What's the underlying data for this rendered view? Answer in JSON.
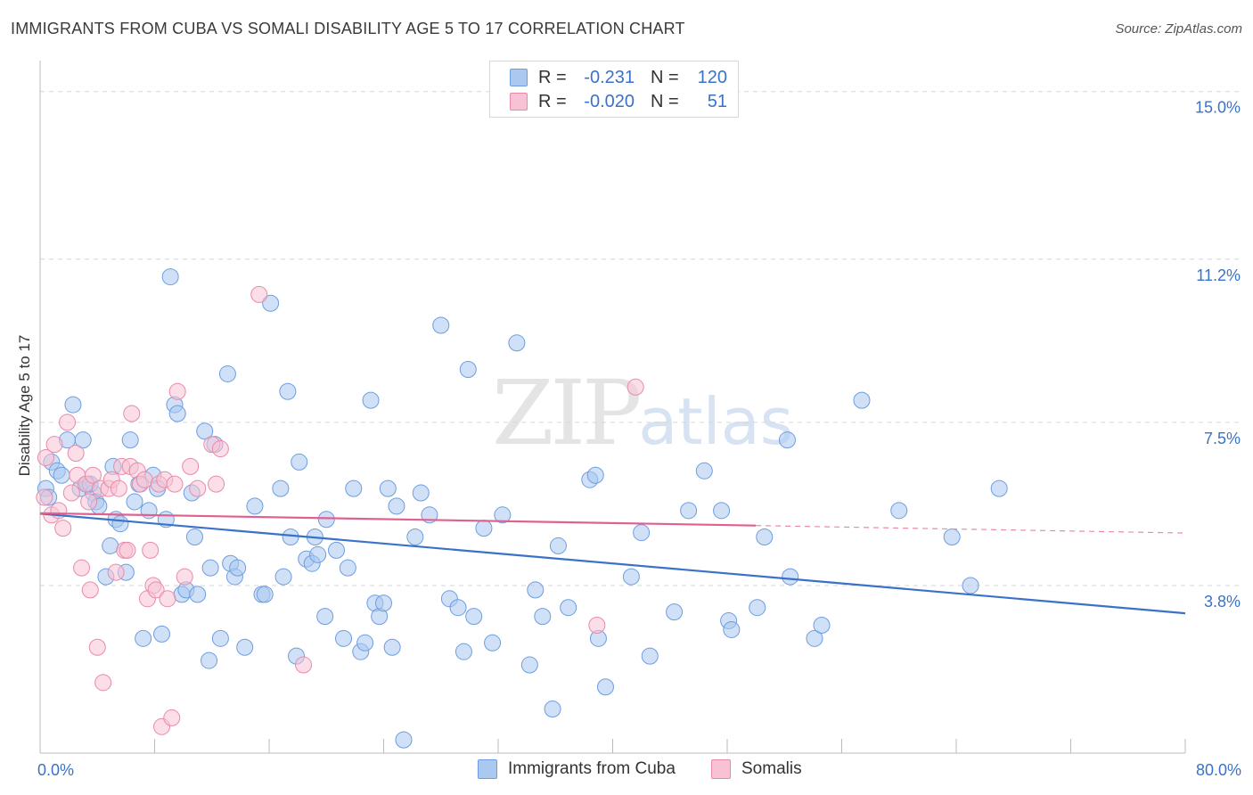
{
  "title": "IMMIGRANTS FROM CUBA VS SOMALI DISABILITY AGE 5 TO 17 CORRELATION CHART",
  "source": "Source: ZipAtlas.com",
  "watermark": {
    "zip": "ZIP",
    "atlas": "atlas"
  },
  "legend": {
    "rows": [
      {
        "r_label": "R =",
        "r_value": "-0.231",
        "n_label": "N =",
        "n_value": "120",
        "color": "#aac8f0",
        "border": "#6d9de0"
      },
      {
        "r_label": "R =",
        "r_value": "-0.020",
        "n_label": "N =",
        "n_value": "51",
        "color": "#f8c2d4",
        "border": "#e88aaa"
      }
    ]
  },
  "bottom_legend": {
    "items": [
      {
        "label": "Immigrants from Cuba",
        "color": "#aac8f0",
        "border": "#6d9de0"
      },
      {
        "label": "Somalis",
        "color": "#f8c2d4",
        "border": "#e88aaa"
      }
    ]
  },
  "chart_data": {
    "type": "scatter",
    "title": "IMMIGRANTS FROM CUBA VS SOMALI DISABILITY AGE 5 TO 17 CORRELATION CHART",
    "xlabel": "",
    "ylabel": "Disability Age 5 to 17",
    "xlim": [
      0,
      80
    ],
    "ylim": [
      0,
      15.5
    ],
    "x_tick_labels": [
      {
        "value": 0,
        "label": "0.0%"
      },
      {
        "value": 80,
        "label": "80.0%"
      }
    ],
    "y_ticks": [
      {
        "value": 3.8,
        "label": "3.8%"
      },
      {
        "value": 7.5,
        "label": "7.5%"
      },
      {
        "value": 11.2,
        "label": "11.2%"
      },
      {
        "value": 15.0,
        "label": "15.0%"
      }
    ],
    "grid": "horizontal dashed",
    "series": [
      {
        "name": "Immigrants from Cuba",
        "color": "#6d9de0",
        "fill": "#aac8f0",
        "points": [
          [
            0.4,
            6.0
          ],
          [
            0.6,
            5.8
          ],
          [
            0.8,
            6.6
          ],
          [
            1.2,
            6.4
          ],
          [
            1.5,
            6.3
          ],
          [
            1.9,
            7.1
          ],
          [
            2.3,
            7.9
          ],
          [
            2.8,
            6.0
          ],
          [
            3.0,
            7.1
          ],
          [
            3.3,
            6.1
          ],
          [
            3.7,
            5.9
          ],
          [
            3.9,
            5.7
          ],
          [
            4.1,
            5.6
          ],
          [
            4.6,
            4.0
          ],
          [
            4.9,
            4.7
          ],
          [
            5.1,
            6.5
          ],
          [
            5.3,
            5.3
          ],
          [
            5.6,
            5.2
          ],
          [
            6.0,
            4.1
          ],
          [
            6.3,
            7.1
          ],
          [
            6.6,
            5.7
          ],
          [
            6.9,
            6.1
          ],
          [
            7.2,
            2.6
          ],
          [
            7.6,
            5.5
          ],
          [
            7.9,
            6.3
          ],
          [
            8.2,
            6.0
          ],
          [
            8.5,
            2.7
          ],
          [
            8.8,
            5.3
          ],
          [
            9.1,
            10.8
          ],
          [
            9.4,
            7.9
          ],
          [
            9.6,
            7.7
          ],
          [
            9.9,
            3.6
          ],
          [
            10.2,
            3.7
          ],
          [
            10.6,
            5.9
          ],
          [
            10.8,
            4.9
          ],
          [
            11.0,
            3.6
          ],
          [
            11.5,
            7.3
          ],
          [
            11.8,
            2.1
          ],
          [
            11.9,
            4.2
          ],
          [
            12.2,
            7.0
          ],
          [
            12.6,
            2.6
          ],
          [
            13.1,
            8.6
          ],
          [
            13.3,
            4.3
          ],
          [
            13.6,
            4.0
          ],
          [
            13.8,
            4.2
          ],
          [
            14.3,
            2.4
          ],
          [
            15.0,
            5.6
          ],
          [
            15.5,
            3.6
          ],
          [
            15.7,
            3.6
          ],
          [
            16.1,
            10.2
          ],
          [
            16.8,
            6.0
          ],
          [
            17.0,
            4.0
          ],
          [
            17.3,
            8.2
          ],
          [
            17.5,
            4.9
          ],
          [
            17.9,
            2.2
          ],
          [
            18.1,
            6.6
          ],
          [
            18.6,
            4.4
          ],
          [
            19.0,
            4.3
          ],
          [
            19.2,
            4.9
          ],
          [
            19.4,
            4.5
          ],
          [
            19.9,
            3.1
          ],
          [
            20.0,
            5.3
          ],
          [
            20.7,
            4.6
          ],
          [
            21.2,
            2.6
          ],
          [
            21.5,
            4.2
          ],
          [
            21.9,
            6.0
          ],
          [
            22.4,
            2.3
          ],
          [
            22.7,
            2.5
          ],
          [
            23.1,
            8.0
          ],
          [
            23.4,
            3.4
          ],
          [
            23.7,
            3.1
          ],
          [
            24.0,
            3.4
          ],
          [
            24.3,
            6.0
          ],
          [
            24.6,
            2.4
          ],
          [
            24.9,
            5.6
          ],
          [
            25.4,
            0.3
          ],
          [
            26.2,
            4.9
          ],
          [
            26.6,
            5.9
          ],
          [
            27.2,
            5.4
          ],
          [
            28.0,
            9.7
          ],
          [
            28.6,
            3.5
          ],
          [
            29.2,
            3.3
          ],
          [
            29.6,
            2.3
          ],
          [
            29.9,
            8.7
          ],
          [
            30.3,
            3.1
          ],
          [
            31.0,
            5.1
          ],
          [
            31.6,
            2.5
          ],
          [
            32.3,
            5.4
          ],
          [
            33.3,
            9.3
          ],
          [
            34.2,
            2.0
          ],
          [
            34.6,
            3.7
          ],
          [
            35.1,
            3.1
          ],
          [
            35.8,
            1.0
          ],
          [
            36.2,
            4.7
          ],
          [
            36.9,
            3.3
          ],
          [
            38.4,
            6.2
          ],
          [
            38.8,
            6.3
          ],
          [
            39.0,
            2.6
          ],
          [
            39.5,
            1.5
          ],
          [
            41.3,
            4.0
          ],
          [
            42.0,
            5.0
          ],
          [
            42.6,
            2.2
          ],
          [
            44.3,
            3.2
          ],
          [
            45.3,
            5.5
          ],
          [
            46.4,
            6.4
          ],
          [
            47.6,
            5.5
          ],
          [
            48.1,
            3.0
          ],
          [
            48.3,
            2.8
          ],
          [
            50.1,
            3.3
          ],
          [
            50.6,
            4.9
          ],
          [
            52.2,
            7.1
          ],
          [
            52.4,
            4.0
          ],
          [
            54.1,
            2.6
          ],
          [
            54.6,
            2.9
          ],
          [
            57.4,
            8.0
          ],
          [
            60.0,
            5.5
          ],
          [
            63.7,
            4.9
          ],
          [
            65.0,
            3.8
          ],
          [
            67.0,
            6.0
          ],
          [
            3.5,
            6.1
          ]
        ]
      },
      {
        "name": "Somalis",
        "color": "#e88aaa",
        "fill": "#f8c2d4",
        "points": [
          [
            0.3,
            5.8
          ],
          [
            0.4,
            6.7
          ],
          [
            0.8,
            5.4
          ],
          [
            1.0,
            7.0
          ],
          [
            1.3,
            5.5
          ],
          [
            1.6,
            5.1
          ],
          [
            1.9,
            7.5
          ],
          [
            2.2,
            5.9
          ],
          [
            2.5,
            6.8
          ],
          [
            2.6,
            6.3
          ],
          [
            2.9,
            4.2
          ],
          [
            3.2,
            6.1
          ],
          [
            3.4,
            5.7
          ],
          [
            3.5,
            3.7
          ],
          [
            3.7,
            6.3
          ],
          [
            4.0,
            2.4
          ],
          [
            4.2,
            6.0
          ],
          [
            4.4,
            1.6
          ],
          [
            4.8,
            6.0
          ],
          [
            5.0,
            6.2
          ],
          [
            5.3,
            4.1
          ],
          [
            5.5,
            6.0
          ],
          [
            5.7,
            6.5
          ],
          [
            5.9,
            4.6
          ],
          [
            6.1,
            4.6
          ],
          [
            6.3,
            6.5
          ],
          [
            6.4,
            7.7
          ],
          [
            6.8,
            6.4
          ],
          [
            7.0,
            6.1
          ],
          [
            7.3,
            6.2
          ],
          [
            7.5,
            3.5
          ],
          [
            7.7,
            4.6
          ],
          [
            7.9,
            3.8
          ],
          [
            8.1,
            3.7
          ],
          [
            8.3,
            6.1
          ],
          [
            8.5,
            0.6
          ],
          [
            8.7,
            6.2
          ],
          [
            8.9,
            3.5
          ],
          [
            9.2,
            0.8
          ],
          [
            9.4,
            6.1
          ],
          [
            9.6,
            8.2
          ],
          [
            10.1,
            4.0
          ],
          [
            10.5,
            6.5
          ],
          [
            11.0,
            6.0
          ],
          [
            12.0,
            7.0
          ],
          [
            12.3,
            6.1
          ],
          [
            15.3,
            10.4
          ],
          [
            18.4,
            2.0
          ],
          [
            38.9,
            2.9
          ],
          [
            41.6,
            8.3
          ],
          [
            12.6,
            6.9
          ]
        ]
      }
    ],
    "trendlines": [
      {
        "series": "Immigrants from Cuba",
        "x": [
          0,
          80
        ],
        "y": [
          5.43,
          3.17
        ],
        "color": "#3a72c8",
        "style": "solid"
      },
      {
        "series": "Somalis",
        "x": [
          0,
          50
        ],
        "y": [
          5.44,
          5.16
        ],
        "color": "#e06090",
        "style": "solid"
      },
      {
        "series": "Somalis",
        "x": [
          50,
          80
        ],
        "y": [
          5.16,
          4.99
        ],
        "color": "#e88aaa",
        "style": "dashed"
      }
    ]
  }
}
